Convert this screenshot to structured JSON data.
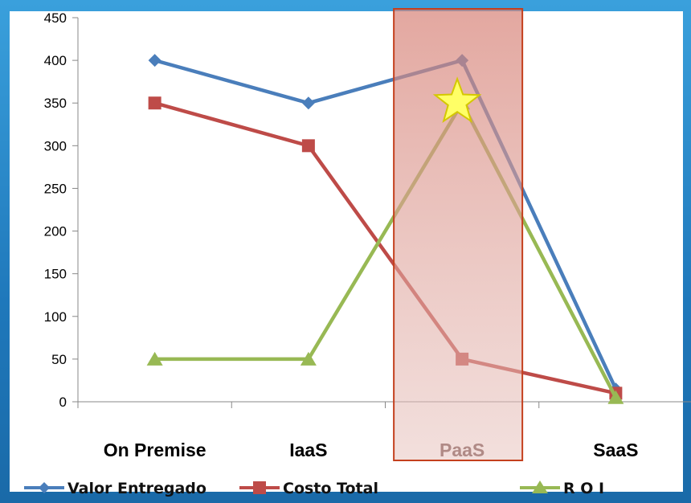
{
  "chart_data": {
    "type": "line",
    "categories": [
      "On Premise",
      "IaaS",
      "PaaS",
      "SaaS"
    ],
    "ylim": [
      0,
      450
    ],
    "yticks": [
      0,
      50,
      100,
      150,
      200,
      250,
      300,
      350,
      400,
      450
    ],
    "series": [
      {
        "name": "Valor Entregado",
        "values": [
          400,
          350,
          400,
          15
        ],
        "color": "#4a7ebb",
        "marker": "diamond"
      },
      {
        "name": "Costo Total",
        "values": [
          350,
          300,
          50,
          10
        ],
        "color": "#be4b48",
        "marker": "square"
      },
      {
        "name": "R O I",
        "values": [
          50,
          50,
          350,
          5
        ],
        "color": "#98b954",
        "marker": "triangle"
      }
    ],
    "highlight": {
      "category": "PaaS",
      "fill": "#d98b80",
      "border": "#c4401e"
    },
    "star": {
      "category": "PaaS",
      "value": 350,
      "fill": "#ffff66",
      "stroke": "#d4c800"
    },
    "grid": false,
    "legend": "bottom"
  }
}
